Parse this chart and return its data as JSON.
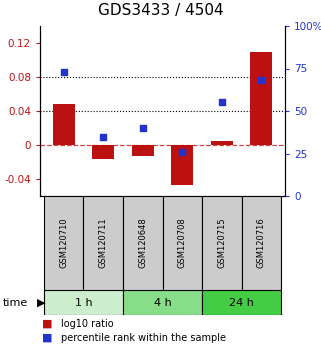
{
  "title": "GDS3433 / 4504",
  "samples": [
    "GSM120710",
    "GSM120711",
    "GSM120648",
    "GSM120708",
    "GSM120715",
    "GSM120716"
  ],
  "log10_ratio": [
    0.048,
    -0.016,
    -0.013,
    -0.047,
    0.005,
    0.11
  ],
  "percentile_rank": [
    73,
    35,
    40,
    26,
    55,
    68
  ],
  "ylim_left": [
    -0.06,
    0.14
  ],
  "ylim_right": [
    0,
    100
  ],
  "yticks_left": [
    -0.04,
    0,
    0.04,
    0.08,
    0.12
  ],
  "yticks_right": [
    0,
    25,
    50,
    75,
    100
  ],
  "ytick_labels_left": [
    "-0.04",
    "0",
    "0.04",
    "0.08",
    "0.12"
  ],
  "ytick_labels_right": [
    "0",
    "25",
    "50",
    "75",
    "100%"
  ],
  "hlines": [
    0.04,
    0.08
  ],
  "bar_color": "#bb1111",
  "dot_color": "#2233cc",
  "zero_line_color": "#cc4444",
  "groups": [
    {
      "label": "1 h",
      "indices": [
        0,
        1
      ],
      "color": "#cceecc"
    },
    {
      "label": "4 h",
      "indices": [
        2,
        3
      ],
      "color": "#88dd88"
    },
    {
      "label": "24 h",
      "indices": [
        4,
        5
      ],
      "color": "#44cc44"
    }
  ],
  "legend_bar_label": "log10 ratio",
  "legend_dot_label": "percentile rank within the sample",
  "title_fontsize": 11,
  "tick_fontsize": 7.5,
  "sample_fontsize": 6,
  "time_fontsize": 8,
  "legend_fontsize": 7,
  "bar_width": 0.55,
  "dot_size": 22
}
